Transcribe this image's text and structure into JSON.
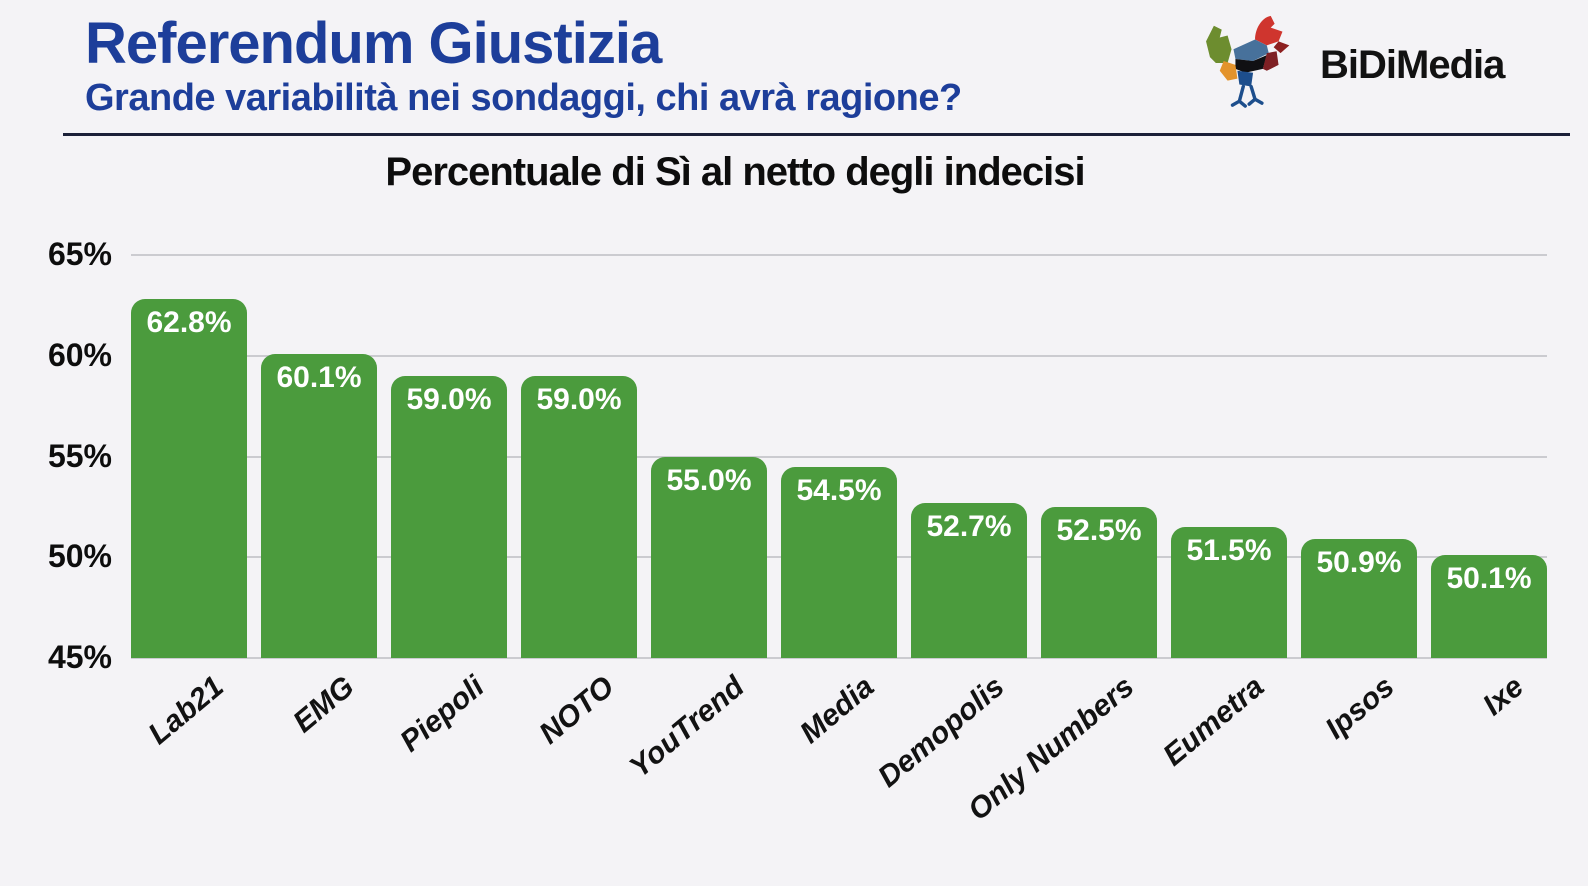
{
  "page": {
    "background": "#f4f3f6"
  },
  "header": {
    "title": "Referendum Giustizia",
    "subtitle": "Grande variabilità nei sondaggi, chi avrà ragione?",
    "title_color": "#1d3e9a",
    "brand_name": "BiDiMedia"
  },
  "chart_data": {
    "type": "bar",
    "title": "Percentuale di Sì al netto degli indecisi",
    "categories": [
      "Lab21",
      "EMG",
      "Piepoli",
      "NOTO",
      "YouTrend",
      "Media",
      "Demopolis",
      "Only Numbers",
      "Eumetra",
      "Ipsos",
      "Ixe"
    ],
    "values": [
      62.8,
      60.1,
      59.0,
      59.0,
      55.0,
      54.5,
      52.7,
      52.5,
      51.5,
      50.9,
      50.1
    ],
    "bar_labels": [
      "62.8%",
      "60.1%",
      "59.0%",
      "59.0%",
      "55.0%",
      "54.5%",
      "52.7%",
      "52.5%",
      "51.5%",
      "50.9%",
      "50.1%"
    ],
    "yticks": [
      "65%",
      "60%",
      "55%",
      "50%",
      "45%"
    ],
    "ylim": [
      45,
      65
    ],
    "grid": true,
    "legend_position": "none",
    "xlabel": "",
    "ylabel": "",
    "bar_color": "#4b9b3d",
    "bar_label_color": "#ffffff",
    "gridline_color": "#cbcbd0"
  }
}
